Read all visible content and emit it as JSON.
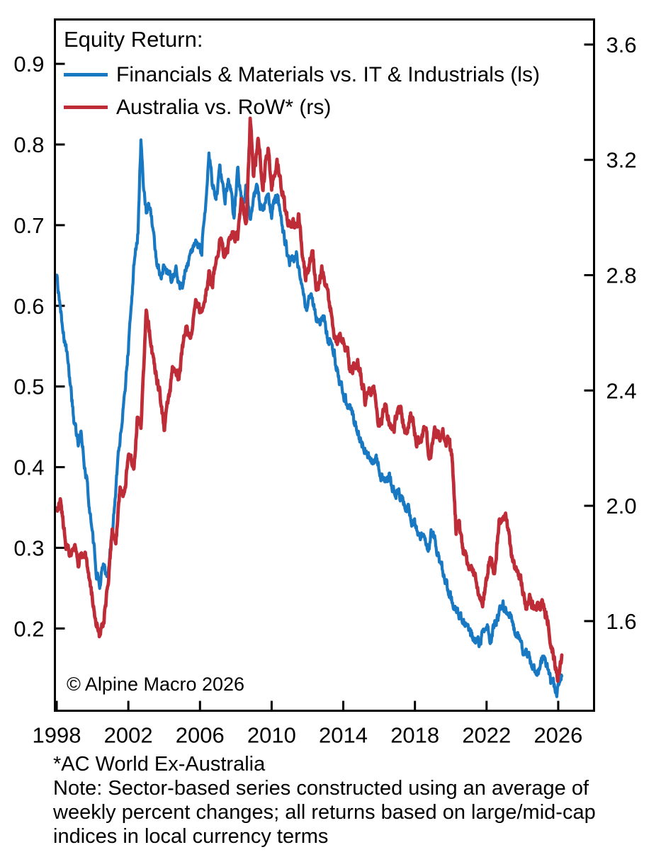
{
  "chart_data": {
    "type": "line",
    "title": "Equity Return:",
    "legend_position": "top-left-inside",
    "grid": false,
    "copyright": "© Alpine Macro 2026",
    "footnotes": [
      "*AC World Ex-Australia",
      "Note: Sector-based series constructed using an average of weekly percent changes; all returns based on large/mid-cap indices in local currency terms"
    ],
    "x_axis": {
      "range": [
        1997.9,
        2028.0
      ],
      "ticks": [
        1998,
        2002,
        2006,
        2010,
        2014,
        2018,
        2022,
        2026
      ]
    },
    "left_axis": {
      "side": "left",
      "range": [
        0.098,
        0.955
      ],
      "ticks": [
        0.2,
        0.3,
        0.4,
        0.5,
        0.6,
        0.7,
        0.8,
        0.9
      ]
    },
    "right_axis": {
      "side": "right",
      "range": [
        1.289,
        3.687
      ],
      "ticks": [
        1.6,
        2.0,
        2.4,
        2.8,
        3.2,
        3.6
      ]
    },
    "series": [
      {
        "name": "Financials & Materials vs. IT & Industrials (ls)",
        "axis": "left",
        "color": "#1878c2",
        "points": [
          [
            1998.0,
            0.635
          ],
          [
            1998.1,
            0.615
          ],
          [
            1998.2,
            0.6
          ],
          [
            1998.4,
            0.565
          ],
          [
            1998.6,
            0.53
          ],
          [
            1998.8,
            0.49
          ],
          [
            1999.0,
            0.455
          ],
          [
            1999.2,
            0.43
          ],
          [
            1999.35,
            0.447
          ],
          [
            1999.6,
            0.4
          ],
          [
            1999.8,
            0.36
          ],
          [
            2000.0,
            0.315
          ],
          [
            2000.2,
            0.275
          ],
          [
            2000.4,
            0.25
          ],
          [
            2000.55,
            0.277
          ],
          [
            2000.7,
            0.262
          ],
          [
            2000.85,
            0.258
          ],
          [
            2001.1,
            0.315
          ],
          [
            2001.4,
            0.4
          ],
          [
            2001.7,
            0.472
          ],
          [
            2002.0,
            0.55
          ],
          [
            2002.3,
            0.646
          ],
          [
            2002.55,
            0.7
          ],
          [
            2002.7,
            0.808
          ],
          [
            2002.85,
            0.745
          ],
          [
            2003.0,
            0.713
          ],
          [
            2003.2,
            0.723
          ],
          [
            2003.5,
            0.67
          ],
          [
            2003.8,
            0.637
          ],
          [
            2004.1,
            0.648
          ],
          [
            2004.4,
            0.627
          ],
          [
            2004.65,
            0.643
          ],
          [
            2004.95,
            0.62
          ],
          [
            2005.2,
            0.645
          ],
          [
            2005.45,
            0.66
          ],
          [
            2005.8,
            0.684
          ],
          [
            2006.1,
            0.672
          ],
          [
            2006.35,
            0.737
          ],
          [
            2006.5,
            0.792
          ],
          [
            2006.7,
            0.751
          ],
          [
            2006.9,
            0.722
          ],
          [
            2007.1,
            0.763
          ],
          [
            2007.4,
            0.731
          ],
          [
            2007.6,
            0.752
          ],
          [
            2007.9,
            0.712
          ],
          [
            2008.1,
            0.757
          ],
          [
            2008.35,
            0.726
          ],
          [
            2008.6,
            0.741
          ],
          [
            2008.8,
            0.709
          ],
          [
            2009.0,
            0.731
          ],
          [
            2009.2,
            0.748
          ],
          [
            2009.5,
            0.714
          ],
          [
            2009.75,
            0.734
          ],
          [
            2010.0,
            0.712
          ],
          [
            2010.3,
            0.733
          ],
          [
            2010.6,
            0.69
          ],
          [
            2011.0,
            0.651
          ],
          [
            2011.4,
            0.661
          ],
          [
            2011.9,
            0.596
          ],
          [
            2012.2,
            0.611
          ],
          [
            2012.6,
            0.578
          ],
          [
            2012.9,
            0.586
          ],
          [
            2013.1,
            0.562
          ],
          [
            2013.5,
            0.538
          ],
          [
            2014.0,
            0.49
          ],
          [
            2014.5,
            0.468
          ],
          [
            2015.0,
            0.432
          ],
          [
            2015.4,
            0.413
          ],
          [
            2015.8,
            0.408
          ],
          [
            2016.3,
            0.392
          ],
          [
            2016.65,
            0.389
          ],
          [
            2017.0,
            0.369
          ],
          [
            2017.6,
            0.345
          ],
          [
            2018.0,
            0.328
          ],
          [
            2018.4,
            0.316
          ],
          [
            2018.75,
            0.299
          ],
          [
            2019.0,
            0.318
          ],
          [
            2019.4,
            0.278
          ],
          [
            2020.1,
            0.235
          ],
          [
            2020.5,
            0.214
          ],
          [
            2020.9,
            0.198
          ],
          [
            2021.3,
            0.188
          ],
          [
            2021.6,
            0.179
          ],
          [
            2021.9,
            0.196
          ],
          [
            2022.2,
            0.186
          ],
          [
            2022.5,
            0.206
          ],
          [
            2022.9,
            0.227
          ],
          [
            2023.2,
            0.219
          ],
          [
            2023.6,
            0.196
          ],
          [
            2023.95,
            0.179
          ],
          [
            2024.5,
            0.159
          ],
          [
            2024.9,
            0.145
          ],
          [
            2025.2,
            0.161
          ],
          [
            2025.55,
            0.138
          ],
          [
            2025.85,
            0.118
          ],
          [
            2026.05,
            0.126
          ],
          [
            2026.2,
            0.132
          ]
        ]
      },
      {
        "name": "Australia vs. RoW* (rs)",
        "axis": "right",
        "color": "#be2d37",
        "points": [
          [
            1998.0,
            1.99
          ],
          [
            1998.15,
            2.04
          ],
          [
            1998.45,
            1.92
          ],
          [
            1998.7,
            1.84
          ],
          [
            1999.0,
            1.88
          ],
          [
            1999.2,
            1.8
          ],
          [
            1999.55,
            1.845
          ],
          [
            1999.8,
            1.74
          ],
          [
            2000.1,
            1.62
          ],
          [
            2000.4,
            1.55
          ],
          [
            2000.6,
            1.605
          ],
          [
            2000.8,
            1.7
          ],
          [
            2001.1,
            1.92
          ],
          [
            2001.3,
            1.89
          ],
          [
            2001.55,
            2.07
          ],
          [
            2001.75,
            2.04
          ],
          [
            2002.0,
            2.17
          ],
          [
            2002.3,
            2.15
          ],
          [
            2002.5,
            2.31
          ],
          [
            2002.7,
            2.27
          ],
          [
            2003.0,
            2.67
          ],
          [
            2003.3,
            2.56
          ],
          [
            2003.6,
            2.44
          ],
          [
            2004.0,
            2.28
          ],
          [
            2004.5,
            2.48
          ],
          [
            2004.8,
            2.44
          ],
          [
            2005.2,
            2.6
          ],
          [
            2005.45,
            2.57
          ],
          [
            2005.8,
            2.71
          ],
          [
            2006.1,
            2.67
          ],
          [
            2006.5,
            2.8
          ],
          [
            2006.7,
            2.76
          ],
          [
            2007.1,
            2.92
          ],
          [
            2007.4,
            2.88
          ],
          [
            2007.8,
            2.96
          ],
          [
            2008.1,
            2.93
          ],
          [
            2008.3,
            3.06
          ],
          [
            2008.6,
            2.98
          ],
          [
            2008.8,
            3.32
          ],
          [
            2009.0,
            3.14
          ],
          [
            2009.25,
            3.28
          ],
          [
            2009.5,
            3.1
          ],
          [
            2009.8,
            3.25
          ],
          [
            2010.0,
            3.12
          ],
          [
            2010.3,
            3.21
          ],
          [
            2010.6,
            3.1
          ],
          [
            2010.85,
            2.99
          ],
          [
            2011.1,
            2.95
          ],
          [
            2011.5,
            3.01
          ],
          [
            2011.9,
            2.79
          ],
          [
            2012.3,
            2.88
          ],
          [
            2012.5,
            2.76
          ],
          [
            2012.8,
            2.84
          ],
          [
            2013.1,
            2.75
          ],
          [
            2013.6,
            2.57
          ],
          [
            2014.0,
            2.59
          ],
          [
            2014.4,
            2.47
          ],
          [
            2014.8,
            2.5
          ],
          [
            2015.2,
            2.36
          ],
          [
            2015.7,
            2.42
          ],
          [
            2015.95,
            2.29
          ],
          [
            2016.4,
            2.36
          ],
          [
            2016.65,
            2.27
          ],
          [
            2017.2,
            2.34
          ],
          [
            2017.45,
            2.25
          ],
          [
            2017.8,
            2.31
          ],
          [
            2018.1,
            2.21
          ],
          [
            2018.5,
            2.26
          ],
          [
            2018.8,
            2.17
          ],
          [
            2019.1,
            2.25
          ],
          [
            2019.5,
            2.26
          ],
          [
            2019.9,
            2.22
          ],
          [
            2020.1,
            2.16
          ],
          [
            2020.3,
            1.93
          ],
          [
            2020.45,
            1.96
          ],
          [
            2020.7,
            1.83
          ],
          [
            2021.0,
            1.78
          ],
          [
            2021.3,
            1.76
          ],
          [
            2021.8,
            1.65
          ],
          [
            2022.2,
            1.83
          ],
          [
            2022.45,
            1.78
          ],
          [
            2022.7,
            1.955
          ],
          [
            2022.9,
            1.97
          ],
          [
            2023.1,
            1.95
          ],
          [
            2023.5,
            1.79
          ],
          [
            2023.7,
            1.77
          ],
          [
            2024.2,
            1.67
          ],
          [
            2024.45,
            1.685
          ],
          [
            2024.7,
            1.65
          ],
          [
            2025.1,
            1.68
          ],
          [
            2025.5,
            1.58
          ],
          [
            2025.8,
            1.47
          ],
          [
            2025.95,
            1.4
          ],
          [
            2026.2,
            1.49
          ]
        ]
      }
    ]
  }
}
